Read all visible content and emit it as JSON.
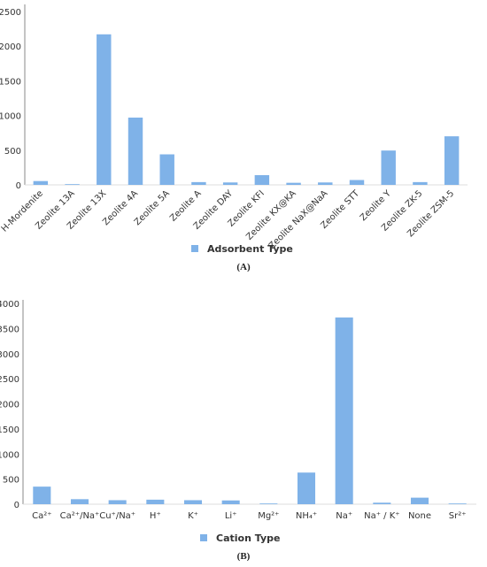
{
  "chart_data": [
    {
      "type": "bar",
      "caption": "(A)",
      "legend": "Adsorbent Type",
      "legend_placement": "bottom",
      "color": "#7fb2e8",
      "categories": [
        "H-Mordenite",
        "Zeolite 13A",
        "Zeolite 13X",
        "Zeolite 4A",
        "Zeolite 5A",
        "Zeolite A",
        "Zeolite DAY",
        "Zeolite KFI",
        "Zeolite KX@KA",
        "Zeolite NaX@NaA",
        "Zeolite STT",
        "Zeolite Y",
        "Zeolite ZK-5",
        "Zeolite ZSM-5"
      ],
      "values": [
        55,
        5,
        2170,
        970,
        440,
        40,
        35,
        140,
        30,
        35,
        70,
        495,
        40,
        700
      ],
      "yticks": [
        "0",
        "500",
        "1000",
        "1500",
        "2000",
        "2500"
      ],
      "ylim": [
        0,
        2550
      ],
      "grid": false
    },
    {
      "type": "bar",
      "caption": "(B)",
      "legend": "Cation Type",
      "legend_placement": "bottom",
      "color": "#7fb2e8",
      "categories": [
        "Ca²⁺",
        "Ca²⁺/Na⁺",
        "Cu⁺/Na⁺",
        "H⁺",
        "K⁺",
        "Li⁺",
        "Mg²⁺",
        "NH₄⁺",
        "Na⁺",
        "Na⁺ / K⁺",
        "None",
        "Sr²⁺"
      ],
      "values": [
        350,
        100,
        80,
        90,
        80,
        75,
        5,
        630,
        3720,
        30,
        130,
        5
      ],
      "yticks": [
        "0",
        "500",
        "1000",
        "1500",
        "2000",
        "2500",
        "3000",
        "3500",
        "4000"
      ],
      "ylim": [
        0,
        4000
      ],
      "grid": false
    }
  ]
}
